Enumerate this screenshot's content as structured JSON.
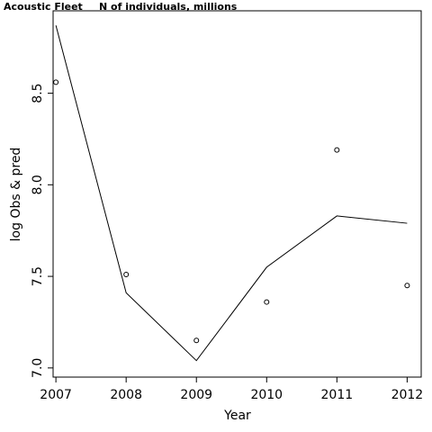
{
  "chart_data": {
    "type": "scatter",
    "title": "Acoustic Fleet",
    "subtitle": "N of individuals, millions",
    "xlabel": "Year",
    "ylabel": "log Obs & pred",
    "xlim": [
      2006.96,
      2012.2
    ],
    "ylim": [
      6.95,
      8.95
    ],
    "xticks": [
      2007,
      2008,
      2009,
      2010,
      2011,
      2012
    ],
    "yticks": [
      7.0,
      7.5,
      8.0,
      8.5
    ],
    "ytick_labels": [
      "7.0",
      "7.5",
      "8.0",
      "8.5"
    ],
    "series": [
      {
        "kind": "points",
        "x": [
          2007,
          2008,
          2009,
          2010,
          2011,
          2012
        ],
        "y": [
          8.56,
          7.51,
          7.15,
          7.36,
          8.19,
          7.45
        ]
      },
      {
        "kind": "line",
        "x": [
          2007,
          2008,
          2009,
          2010,
          2011,
          2012
        ],
        "y": [
          8.87,
          7.41,
          7.04,
          7.55,
          7.83,
          7.79
        ]
      }
    ],
    "grid": false,
    "legend": "none"
  }
}
